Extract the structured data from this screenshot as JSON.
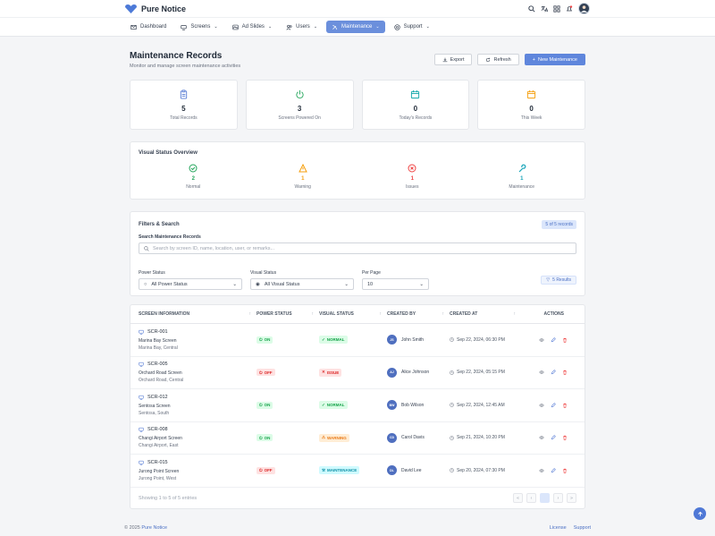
{
  "app": {
    "brand": "Pure Notice"
  },
  "nav": [
    {
      "label": "Dashboard",
      "icon": "mail-icon"
    },
    {
      "label": "Screens",
      "icon": "monitor-icon"
    },
    {
      "label": "Ad Slides",
      "icon": "image-icon"
    },
    {
      "label": "Users",
      "icon": "users-icon"
    },
    {
      "label": "Maintenance",
      "icon": "tools-icon"
    },
    {
      "label": "Support",
      "icon": "help-icon"
    }
  ],
  "header": {
    "title": "Maintenance Records",
    "subtitle": "Monitor and manage screen maintenance activities",
    "export": "Export",
    "refresh": "Refresh",
    "new": "New Maintenance"
  },
  "stats": [
    {
      "value": "5",
      "label": "Total Records",
      "color": "#5b7fd6"
    },
    {
      "value": "3",
      "label": "Screens Powered On",
      "color": "#22a55a"
    },
    {
      "value": "0",
      "label": "Today's Records",
      "color": "#0ea5a8"
    },
    {
      "value": "0",
      "label": "This Week",
      "color": "#f59e0b"
    }
  ],
  "visual": {
    "title": "Visual Status Overview",
    "items": [
      {
        "value": "2",
        "label": "Normal",
        "color": "#22a55a"
      },
      {
        "value": "1",
        "label": "Warning",
        "color": "#f59e0b"
      },
      {
        "value": "1",
        "label": "Issues",
        "color": "#ef4444"
      },
      {
        "value": "1",
        "label": "Maintenance",
        "color": "#14a3b8"
      }
    ]
  },
  "filters": {
    "title": "Filters & Search",
    "count": "5 of 5 records",
    "search_label": "Search Maintenance Records",
    "search_placeholder": "Search by screen ID, name, location, user, or remarks...",
    "power_label": "Power Status",
    "power_value": "All Power Status",
    "visual_label": "Visual Status",
    "visual_value": "All Visual Status",
    "perpage_label": "Per Page",
    "perpage_value": "10",
    "results": "5 Results"
  },
  "table": {
    "headers": [
      "SCREEN INFORMATION",
      "POWER STATUS",
      "VISUAL STATUS",
      "CREATED BY",
      "CREATED AT",
      "ACTIONS"
    ],
    "rows": [
      {
        "id": "SCR-001",
        "name": "Marina Bay Screen",
        "loc": "Marina Bay, Central",
        "power": "ON",
        "visual": "NORMAL",
        "user": "John Smith",
        "initials": "JS",
        "date": "Sep 22, 2024, 06:30 PM"
      },
      {
        "id": "SCR-005",
        "name": "Orchard Road Screen",
        "loc": "Orchard Road, Central",
        "power": "OFF",
        "visual": "ISSUE",
        "user": "Alice Johnson",
        "initials": "AJ",
        "date": "Sep 22, 2024, 05:15 PM"
      },
      {
        "id": "SCR-012",
        "name": "Sentosa Screen",
        "loc": "Sentosa, South",
        "power": "ON",
        "visual": "NORMAL",
        "user": "Bob Wilson",
        "initials": "BW",
        "date": "Sep 22, 2024, 12:45 AM"
      },
      {
        "id": "SCR-008",
        "name": "Changi Airport Screen",
        "loc": "Changi Airport, East",
        "power": "ON",
        "visual": "WARNING",
        "user": "Carol Davis",
        "initials": "CD",
        "date": "Sep 21, 2024, 10:20 PM"
      },
      {
        "id": "SCR-015",
        "name": "Jurong Point Screen",
        "loc": "Jurong Point, West",
        "power": "OFF",
        "visual": "MAINTENANCE",
        "user": "David Lee",
        "initials": "DL",
        "date": "Sep 20, 2024, 07:30 PM"
      }
    ],
    "showing": "Showing 1 to 5 of 5 entries",
    "pager": [
      "«",
      "‹",
      "1",
      "›",
      "»"
    ]
  },
  "footer": {
    "copyright": "© 2025",
    "brand": "Pure Notice",
    "license": "License",
    "support": "Support"
  }
}
